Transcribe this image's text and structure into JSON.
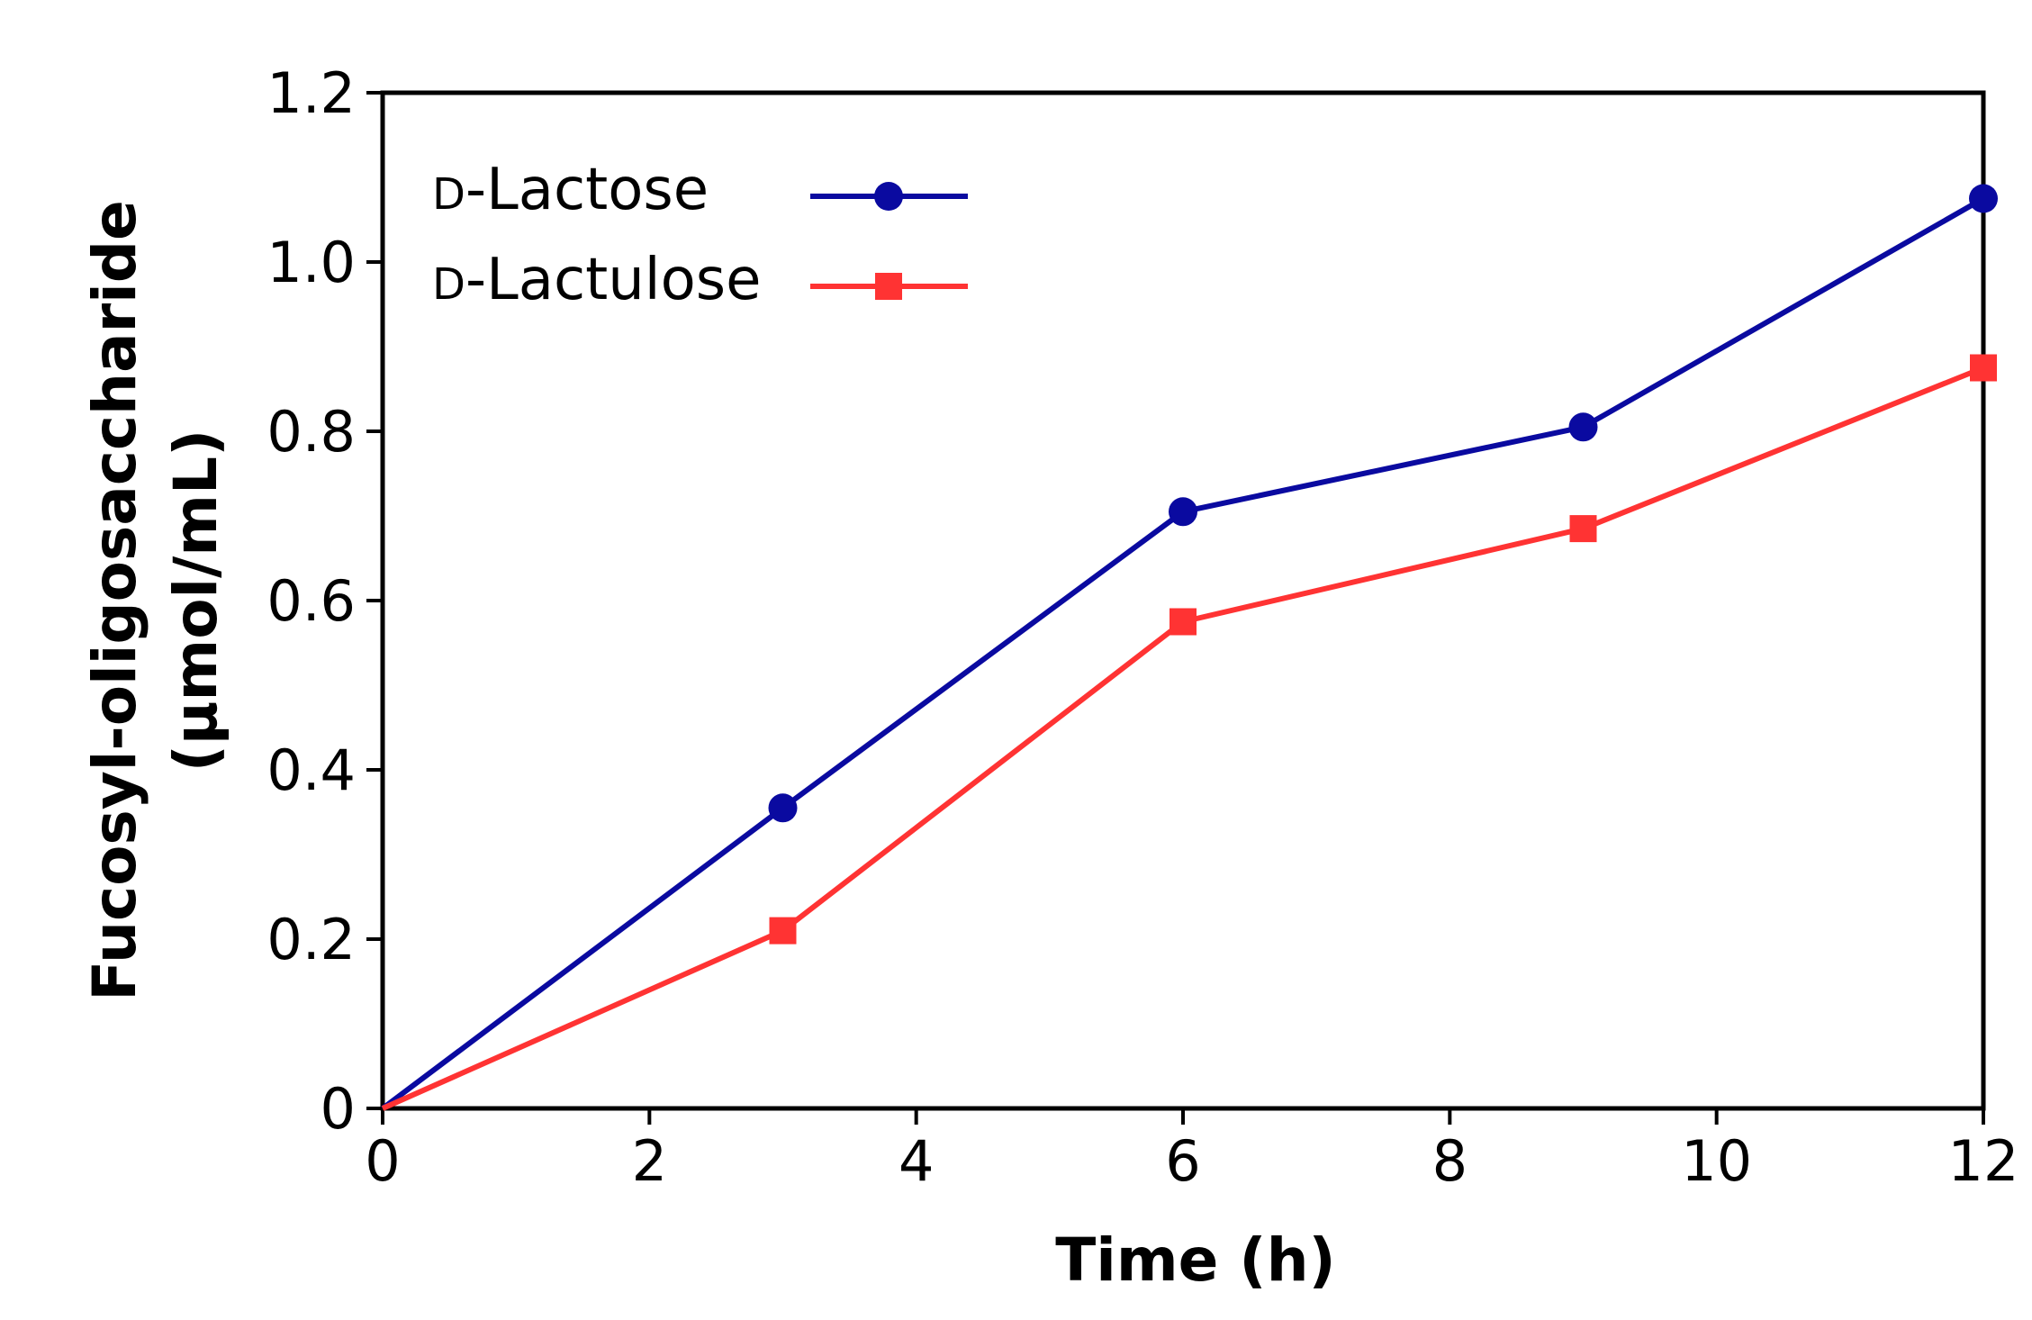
{
  "chart_data": {
    "type": "line",
    "title": "",
    "xlabel": "Time (h)",
    "ylabel_line1": "Fucosyl-oligosaccharide",
    "ylabel_line2": "(µmol/mL)",
    "xlim": [
      0,
      12
    ],
    "ylim": [
      0,
      1.2
    ],
    "xticks": [
      0,
      2,
      4,
      6,
      8,
      10,
      12
    ],
    "xtick_labels": [
      "0",
      "2",
      "4",
      "6",
      "8",
      "10",
      "12"
    ],
    "yticks": [
      0,
      0.2,
      0.4,
      0.6,
      0.8,
      1.0,
      1.2
    ],
    "ytick_labels": [
      "0",
      "0.2",
      "0.4",
      "0.6",
      "0.8",
      "1.0",
      "1.2"
    ],
    "grid": false,
    "legend_position": "top-left",
    "x": [
      0,
      3,
      6,
      9,
      12
    ],
    "series": [
      {
        "name": "D-Lactose",
        "name_prefix": "D",
        "name_rest": "-Lactose",
        "color": "#0a0aa0",
        "marker": "circle",
        "values": [
          0,
          0.355,
          0.705,
          0.805,
          1.075
        ]
      },
      {
        "name": "D-Lactulose",
        "name_prefix": "D",
        "name_rest": "-Lactulose",
        "color": "#ff3333",
        "marker": "square",
        "values": [
          0,
          0.21,
          0.575,
          0.685,
          0.875
        ]
      }
    ]
  }
}
